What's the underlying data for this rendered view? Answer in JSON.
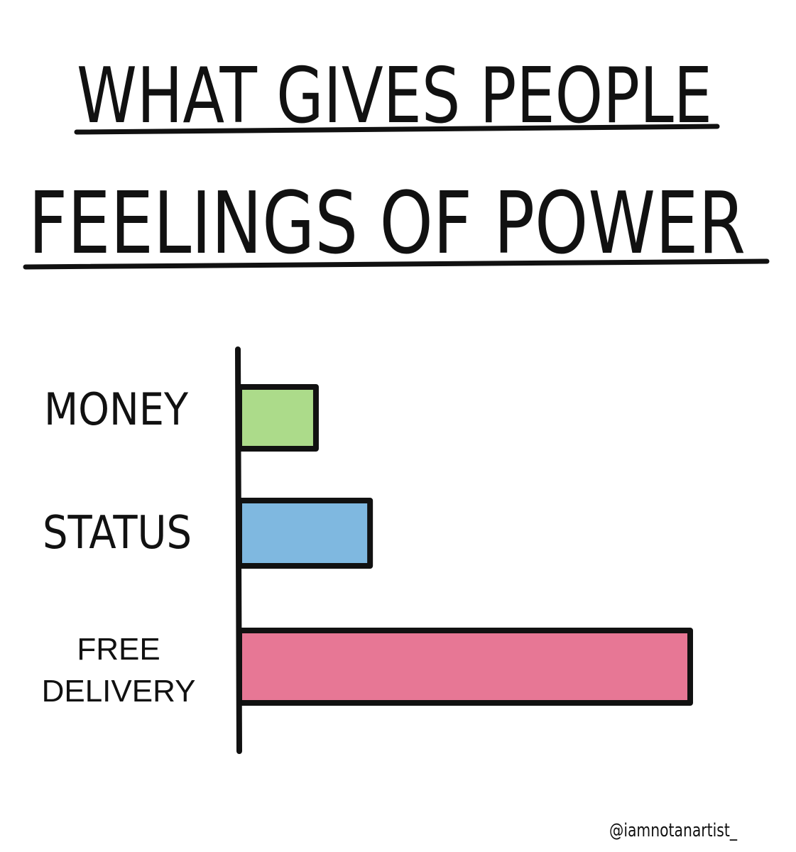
{
  "chart_data": {
    "type": "bar",
    "orientation": "horizontal",
    "title_lines": [
      "WHAT GIVES PEOPLE",
      "FEELINGS OF POWER"
    ],
    "categories": [
      "MONEY",
      "STATUS",
      "FREE DELIVERY"
    ],
    "category_label_lines": [
      [
        "MONEY"
      ],
      [
        "STATUS"
      ],
      [
        "FREE",
        "DELIVERY"
      ]
    ],
    "values": [
      17,
      29,
      100
    ],
    "value_scale": "relative, no axis ticks printed",
    "xlim": [
      0,
      100
    ],
    "colors": [
      "#acdb8a",
      "#7fb8e0",
      "#e77795"
    ],
    "grid": false,
    "legend": "none",
    "xlabel": "",
    "ylabel": ""
  },
  "credit": "@iamnotanartist_"
}
